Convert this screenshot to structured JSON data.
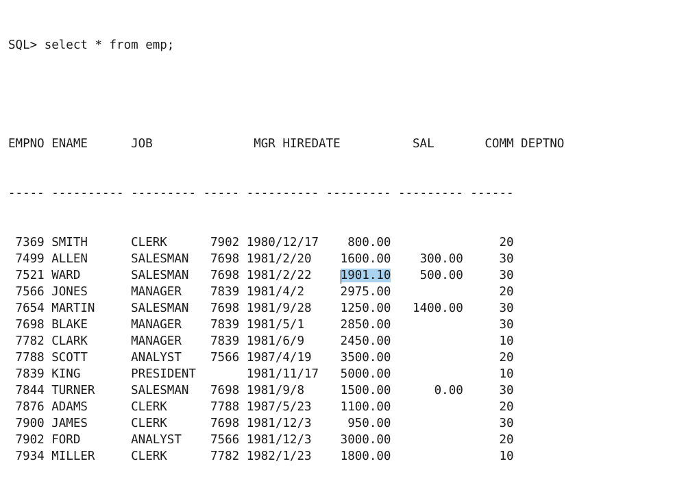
{
  "terminal": {
    "prompt": "SQL> ",
    "command": "select * from emp;"
  },
  "table": {
    "header_line": "EMPNO ENAME      JOB              MGR HIREDATE          SAL       COMM DEPTNO",
    "separator_line": "----- ---------- --------- ----- ---------- --------- --------- ------",
    "columns": [
      "EMPNO",
      "ENAME",
      "JOB",
      "MGR",
      "HIREDATE",
      "SAL",
      "COMM",
      "DEPTNO"
    ],
    "rows": [
      {
        "empno": "7369",
        "ename": "SMITH",
        "job": "CLERK",
        "mgr": "7902",
        "hiredate": "1980/12/17",
        "sal": "800.00",
        "comm": "",
        "deptno": "20"
      },
      {
        "empno": "7499",
        "ename": "ALLEN",
        "job": "SALESMAN",
        "mgr": "7698",
        "hiredate": "1981/2/20",
        "sal": "1600.00",
        "comm": "300.00",
        "deptno": "30"
      },
      {
        "empno": "7521",
        "ename": "WARD",
        "job": "SALESMAN",
        "mgr": "7698",
        "hiredate": "1981/2/22",
        "sal": "1901.10",
        "comm": "500.00",
        "deptno": "30"
      },
      {
        "empno": "7566",
        "ename": "JONES",
        "job": "MANAGER",
        "mgr": "7839",
        "hiredate": "1981/4/2",
        "sal": "2975.00",
        "comm": "",
        "deptno": "20"
      },
      {
        "empno": "7654",
        "ename": "MARTIN",
        "job": "SALESMAN",
        "mgr": "7698",
        "hiredate": "1981/9/28",
        "sal": "1250.00",
        "comm": "1400.00",
        "deptno": "30"
      },
      {
        "empno": "7698",
        "ename": "BLAKE",
        "job": "MANAGER",
        "mgr": "7839",
        "hiredate": "1981/5/1",
        "sal": "2850.00",
        "comm": "",
        "deptno": "30"
      },
      {
        "empno": "7782",
        "ename": "CLARK",
        "job": "MANAGER",
        "mgr": "7839",
        "hiredate": "1981/6/9",
        "sal": "2450.00",
        "comm": "",
        "deptno": "10"
      },
      {
        "empno": "7788",
        "ename": "SCOTT",
        "job": "ANALYST",
        "mgr": "7566",
        "hiredate": "1987/4/19",
        "sal": "3500.00",
        "comm": "",
        "deptno": "20"
      },
      {
        "empno": "7839",
        "ename": "KING",
        "job": "PRESIDENT",
        "mgr": "",
        "hiredate": "1981/11/17",
        "sal": "5000.00",
        "comm": "",
        "deptno": "10"
      },
      {
        "empno": "7844",
        "ename": "TURNER",
        "job": "SALESMAN",
        "mgr": "7698",
        "hiredate": "1981/9/8",
        "sal": "1500.00",
        "comm": "0.00",
        "deptno": "30"
      },
      {
        "empno": "7876",
        "ename": "ADAMS",
        "job": "CLERK",
        "mgr": "7788",
        "hiredate": "1987/5/23",
        "sal": "1100.00",
        "comm": "",
        "deptno": "20"
      },
      {
        "empno": "7900",
        "ename": "JAMES",
        "job": "CLERK",
        "mgr": "7698",
        "hiredate": "1981/12/3",
        "sal": "950.00",
        "comm": "",
        "deptno": "30"
      },
      {
        "empno": "7902",
        "ename": "FORD",
        "job": "ANALYST",
        "mgr": "7566",
        "hiredate": "1981/12/3",
        "sal": "3000.00",
        "comm": "",
        "deptno": "20"
      },
      {
        "empno": "7934",
        "ename": "MILLER",
        "job": "CLERK",
        "mgr": "7782",
        "hiredate": "1982/1/23",
        "sal": "1800.00",
        "comm": "",
        "deptno": "10"
      }
    ]
  },
  "selection": {
    "highlight_color": "#a9d3ee",
    "selected_value": "1901.10"
  }
}
